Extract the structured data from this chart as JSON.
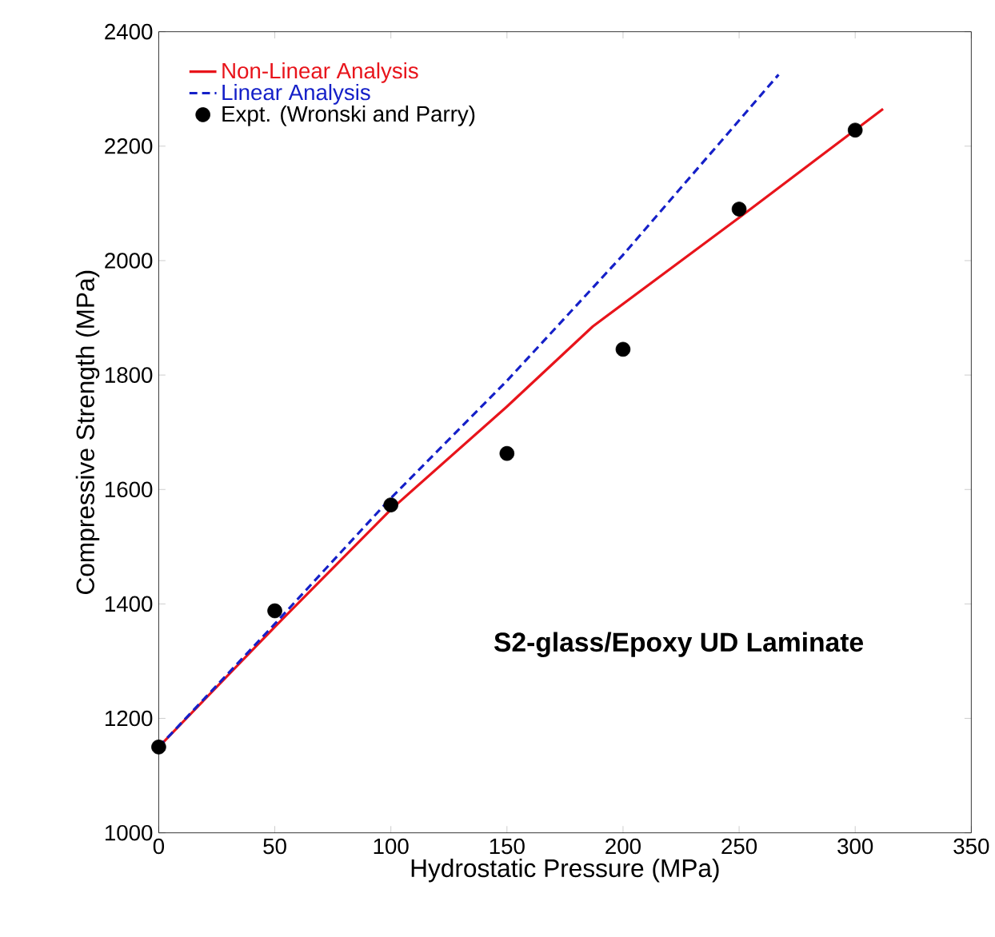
{
  "chart_data": {
    "type": "line",
    "xlabel": "Hydrostatic Pressure (MPa)",
    "ylabel": "Compressive Strength (MPa)",
    "xlim": [
      0,
      350
    ],
    "ylim": [
      1000,
      2400
    ],
    "xticks": [
      0,
      50,
      100,
      150,
      200,
      250,
      300,
      350
    ],
    "yticks": [
      1000,
      1200,
      1400,
      1600,
      1800,
      2000,
      2200,
      2400
    ],
    "legend": "top left",
    "grid": false,
    "annotations": [
      "**S2-glass/Epoxy UD Laminate**"
    ],
    "series": [
      {
        "name": "Non-Linear Analysis",
        "color": "#e8141b",
        "line_style": "solid",
        "marker": "none",
        "x": [
          0,
          50,
          100,
          150,
          187,
          250,
          312
        ],
        "values": [
          1150,
          1360,
          1565,
          1745,
          1885,
          2075,
          2265
        ]
      },
      {
        "name": "Linear Analysis",
        "color": "#1520c8",
        "line_style": "dashed",
        "marker": "none",
        "x": [
          0,
          50,
          100,
          150,
          200,
          267
        ],
        "values": [
          1150,
          1365,
          1585,
          1790,
          2010,
          2325
        ]
      },
      {
        "name": "Expt. (Wronski and Parry)",
        "type": "scatter",
        "color": "#000000",
        "marker": "circle",
        "x": [
          0,
          50,
          100,
          150,
          200,
          250,
          300
        ],
        "values": [
          1150,
          1388,
          1573,
          1663,
          1845,
          2090,
          2228
        ]
      }
    ]
  }
}
